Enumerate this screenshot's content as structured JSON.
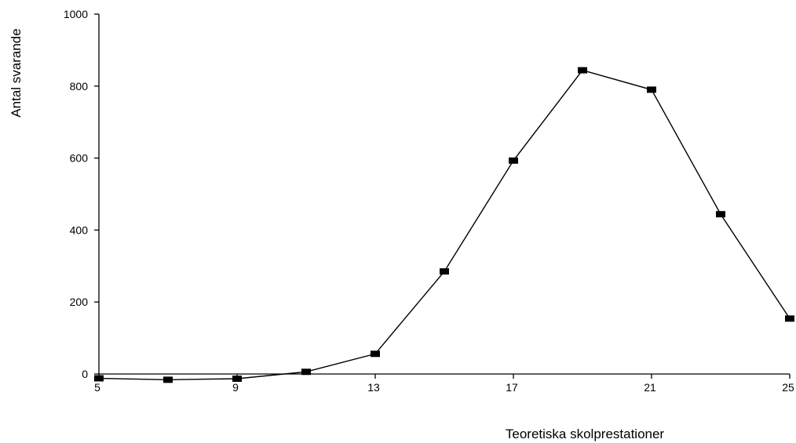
{
  "chart_data": {
    "type": "line",
    "title": "",
    "xlabel": "Teoretiska skolprestationer",
    "ylabel": "Antal svarande",
    "xlim": [
      5,
      25
    ],
    "ylim": [
      0,
      1000
    ],
    "x_ticks": [
      "5",
      "9",
      "13",
      "17",
      "21",
      "25"
    ],
    "y_ticks": [
      "0",
      "200",
      "400",
      "600",
      "800",
      "1000"
    ],
    "grid": false,
    "legend": "none",
    "series": [
      {
        "color": "#000000",
        "marker": "square",
        "x": [
          5,
          7,
          9,
          11,
          13,
          15,
          17,
          19,
          21,
          23,
          25
        ],
        "y": [
          -12,
          -16,
          -13,
          6,
          56,
          285,
          593,
          844,
          790,
          444,
          154
        ]
      }
    ]
  }
}
